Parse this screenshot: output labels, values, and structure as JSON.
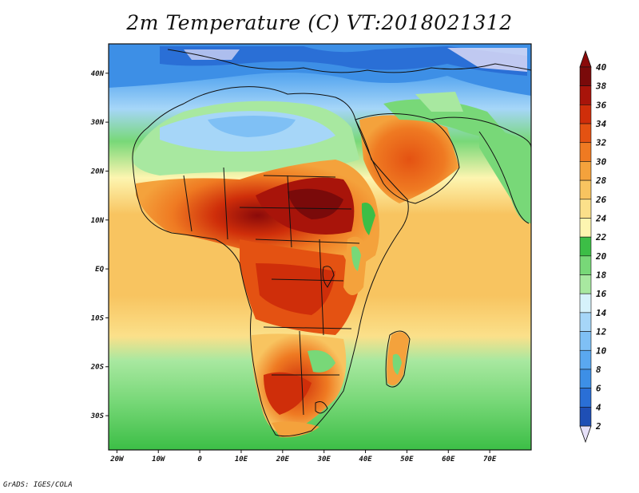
{
  "title": "2m Temperature (C) VT:2018021312",
  "credit": "GrADS: IGES/COLA",
  "map": {
    "projection": "latlon",
    "lon_range": [
      -22,
      80
    ],
    "lat_range": [
      -37,
      46
    ],
    "lon_ticks": [
      {
        "value": -20,
        "label": "20W"
      },
      {
        "value": -10,
        "label": "10W"
      },
      {
        "value": 0,
        "label": "0"
      },
      {
        "value": 10,
        "label": "10E"
      },
      {
        "value": 20,
        "label": "20E"
      },
      {
        "value": 30,
        "label": "30E"
      },
      {
        "value": 40,
        "label": "40E"
      },
      {
        "value": 50,
        "label": "50E"
      },
      {
        "value": 60,
        "label": "60E"
      },
      {
        "value": 70,
        "label": "70E"
      }
    ],
    "lat_ticks": [
      {
        "value": 40,
        "label": "40N"
      },
      {
        "value": 30,
        "label": "30N"
      },
      {
        "value": 20,
        "label": "20N"
      },
      {
        "value": 10,
        "label": "10N"
      },
      {
        "value": 0,
        "label": "EQ"
      },
      {
        "value": -10,
        "label": "10S"
      },
      {
        "value": -20,
        "label": "20S"
      },
      {
        "value": -30,
        "label": "30S"
      }
    ]
  },
  "colorbar": {
    "labels": [
      "2",
      "4",
      "6",
      "8",
      "10",
      "12",
      "14",
      "16",
      "18",
      "20",
      "22",
      "24",
      "26",
      "28",
      "30",
      "32",
      "34",
      "36",
      "38",
      "40"
    ],
    "colors": [
      "#1a1f8c",
      "#1f4fb5",
      "#2a6fd6",
      "#3d8fe6",
      "#5aa8f0",
      "#7fc0f5",
      "#a6d6f8",
      "#d6f2fb",
      "#a8e8a0",
      "#78d878",
      "#3cbe46",
      "#fdf5b0",
      "#fbe08a",
      "#f8c460",
      "#f4a23c",
      "#ef7a22",
      "#e45212",
      "#cf2e0a",
      "#a8140a",
      "#7a0a0a"
    ],
    "under_color": "#e6e0f8",
    "over_color": "#8a0a0a"
  },
  "colors": {
    "ocean_north": "#5aa8f0",
    "ocean_tropical": "#f8c460",
    "ocean_south": "#78d878",
    "outline": "#111111"
  }
}
